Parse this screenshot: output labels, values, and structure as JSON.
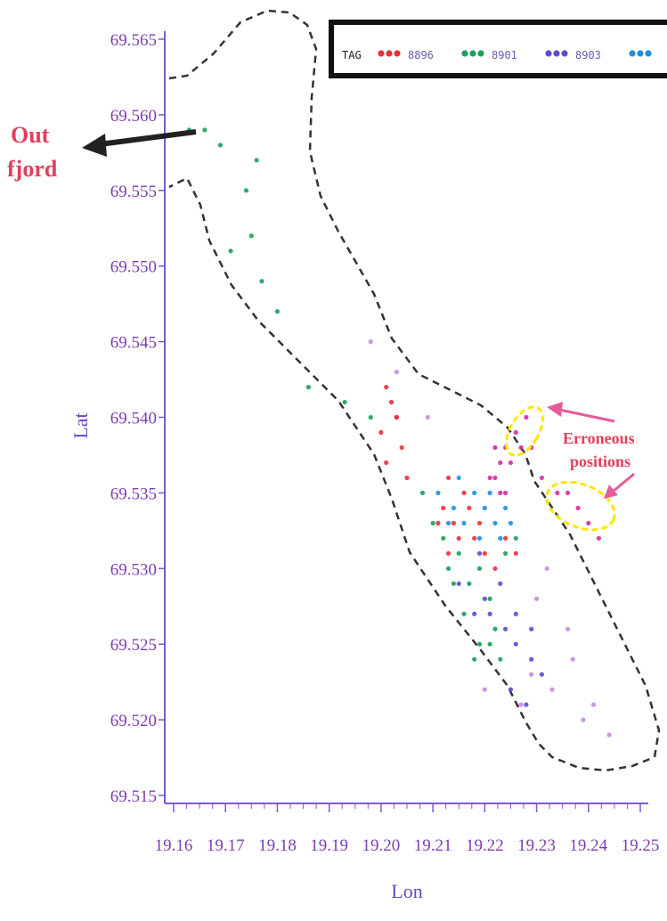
{
  "chart_data": {
    "type": "scatter",
    "title": "",
    "xlabel": "Lon",
    "ylabel": "Lat",
    "xlim": [
      19.16,
      19.25
    ],
    "ylim": [
      69.515,
      69.565
    ],
    "x_ticks": [
      "19.16",
      "19.17",
      "19.18",
      "19.19",
      "19.20",
      "19.21",
      "19.22",
      "19.23",
      "19.24",
      "19.25"
    ],
    "y_ticks": [
      "69.515",
      "69.520",
      "69.525",
      "69.530",
      "69.535",
      "69.540",
      "69.545",
      "69.550",
      "69.555",
      "69.560",
      "69.565"
    ],
    "grid": false,
    "legend": {
      "title": "TAG",
      "placement": "top",
      "entries": [
        {
          "label": "8896",
          "color": "#e8303a"
        },
        {
          "label": "8901",
          "color": "#1aa05a"
        },
        {
          "label": "8903",
          "color": "#5a4bd0"
        },
        {
          "label": "",
          "color": "#1e8fe0"
        }
      ]
    },
    "series": [
      {
        "name": "8896",
        "color": "#e8303a",
        "points": [
          [
            19.201,
            69.542
          ],
          [
            19.202,
            69.541
          ],
          [
            19.203,
            69.54
          ],
          [
            19.2,
            69.539
          ],
          [
            19.204,
            69.538
          ],
          [
            19.201,
            69.537
          ],
          [
            19.205,
            69.536
          ],
          [
            19.203,
            69.54
          ],
          [
            19.213,
            69.536
          ],
          [
            19.216,
            69.535
          ],
          [
            19.212,
            69.534
          ],
          [
            19.214,
            69.533
          ],
          [
            19.218,
            69.532
          ],
          [
            19.22,
            69.531
          ],
          [
            19.222,
            69.53
          ],
          [
            19.215,
            69.532
          ],
          [
            19.217,
            69.534
          ],
          [
            19.219,
            69.533
          ],
          [
            19.224,
            69.532
          ],
          [
            19.226,
            69.531
          ],
          [
            19.211,
            69.533
          ],
          [
            19.213,
            69.531
          ]
        ]
      },
      {
        "name": "8901",
        "color": "#1aa05a",
        "points": [
          [
            19.163,
            69.559
          ],
          [
            19.166,
            69.559
          ],
          [
            19.169,
            69.558
          ],
          [
            19.174,
            69.555
          ],
          [
            19.176,
            69.557
          ],
          [
            19.175,
            69.552
          ],
          [
            19.171,
            69.551
          ],
          [
            19.177,
            69.549
          ],
          [
            19.18,
            69.547
          ],
          [
            19.186,
            69.542
          ],
          [
            19.193,
            69.541
          ],
          [
            19.198,
            69.54
          ],
          [
            19.208,
            69.535
          ],
          [
            19.21,
            69.533
          ],
          [
            19.212,
            69.532
          ],
          [
            19.213,
            69.53
          ],
          [
            19.215,
            69.531
          ],
          [
            19.217,
            69.529
          ],
          [
            19.219,
            69.53
          ],
          [
            19.221,
            69.528
          ],
          [
            19.222,
            69.526
          ],
          [
            19.219,
            69.525
          ],
          [
            19.221,
            69.525
          ],
          [
            19.223,
            69.524
          ],
          [
            19.214,
            69.529
          ],
          [
            19.216,
            69.527
          ],
          [
            19.224,
            69.531
          ],
          [
            19.226,
            69.532
          ],
          [
            19.218,
            69.524
          ]
        ]
      },
      {
        "name": "8903",
        "color": "#5a4bd0",
        "points": [
          [
            19.218,
            69.527
          ],
          [
            19.22,
            69.528
          ],
          [
            19.224,
            69.526
          ],
          [
            19.226,
            69.525
          ],
          [
            19.229,
            69.524
          ],
          [
            19.231,
            69.523
          ],
          [
            19.226,
            69.527
          ],
          [
            19.229,
            69.526
          ],
          [
            19.223,
            69.529
          ],
          [
            19.225,
            69.522
          ],
          [
            19.228,
            69.521
          ],
          [
            19.215,
            69.529
          ],
          [
            19.219,
            69.531
          ],
          [
            19.221,
            69.527
          ]
        ]
      },
      {
        "name": "",
        "color": "#1e8fe0",
        "points": [
          [
            19.211,
            69.535
          ],
          [
            19.214,
            69.534
          ],
          [
            19.216,
            69.533
          ],
          [
            19.218,
            69.535
          ],
          [
            19.22,
            69.534
          ],
          [
            19.222,
            69.533
          ],
          [
            19.224,
            69.534
          ],
          [
            19.225,
            69.533
          ],
          [
            19.219,
            69.532
          ],
          [
            19.221,
            69.535
          ],
          [
            19.213,
            69.533
          ],
          [
            19.215,
            69.536
          ],
          [
            19.223,
            69.532
          ]
        ]
      },
      {
        "name": "",
        "color": "#d82aa0",
        "points": [
          [
            19.222,
            69.538
          ],
          [
            19.223,
            69.537
          ],
          [
            19.224,
            69.538
          ],
          [
            19.225,
            69.537
          ],
          [
            19.222,
            69.536
          ],
          [
            19.223,
            69.535
          ],
          [
            19.221,
            69.536
          ],
          [
            19.224,
            69.535
          ],
          [
            19.226,
            69.539
          ],
          [
            19.227,
            69.538
          ],
          [
            19.228,
            69.54
          ],
          [
            19.229,
            69.538
          ],
          [
            19.231,
            69.536
          ],
          [
            19.234,
            69.535
          ],
          [
            19.236,
            69.535
          ],
          [
            19.238,
            69.534
          ],
          [
            19.24,
            69.533
          ],
          [
            19.242,
            69.532
          ]
        ]
      },
      {
        "name": "",
        "color": "#c88be0",
        "points": [
          [
            19.198,
            69.545
          ],
          [
            19.203,
            69.543
          ],
          [
            19.209,
            69.54
          ],
          [
            19.229,
            69.523
          ],
          [
            19.233,
            69.522
          ],
          [
            19.237,
            69.524
          ],
          [
            19.241,
            69.521
          ],
          [
            19.244,
            69.519
          ],
          [
            19.236,
            69.526
          ],
          [
            19.23,
            69.528
          ],
          [
            19.232,
            69.53
          ],
          [
            19.22,
            69.522
          ],
          [
            19.227,
            69.521
          ],
          [
            19.239,
            69.52
          ]
        ]
      }
    ],
    "annotations": [
      {
        "text_lines": [
          "Out",
          "fjord"
        ],
        "color": "#e8303a"
      },
      {
        "text_lines": [
          "Erroneous",
          "positions"
        ],
        "color": "#e0405c"
      }
    ]
  }
}
